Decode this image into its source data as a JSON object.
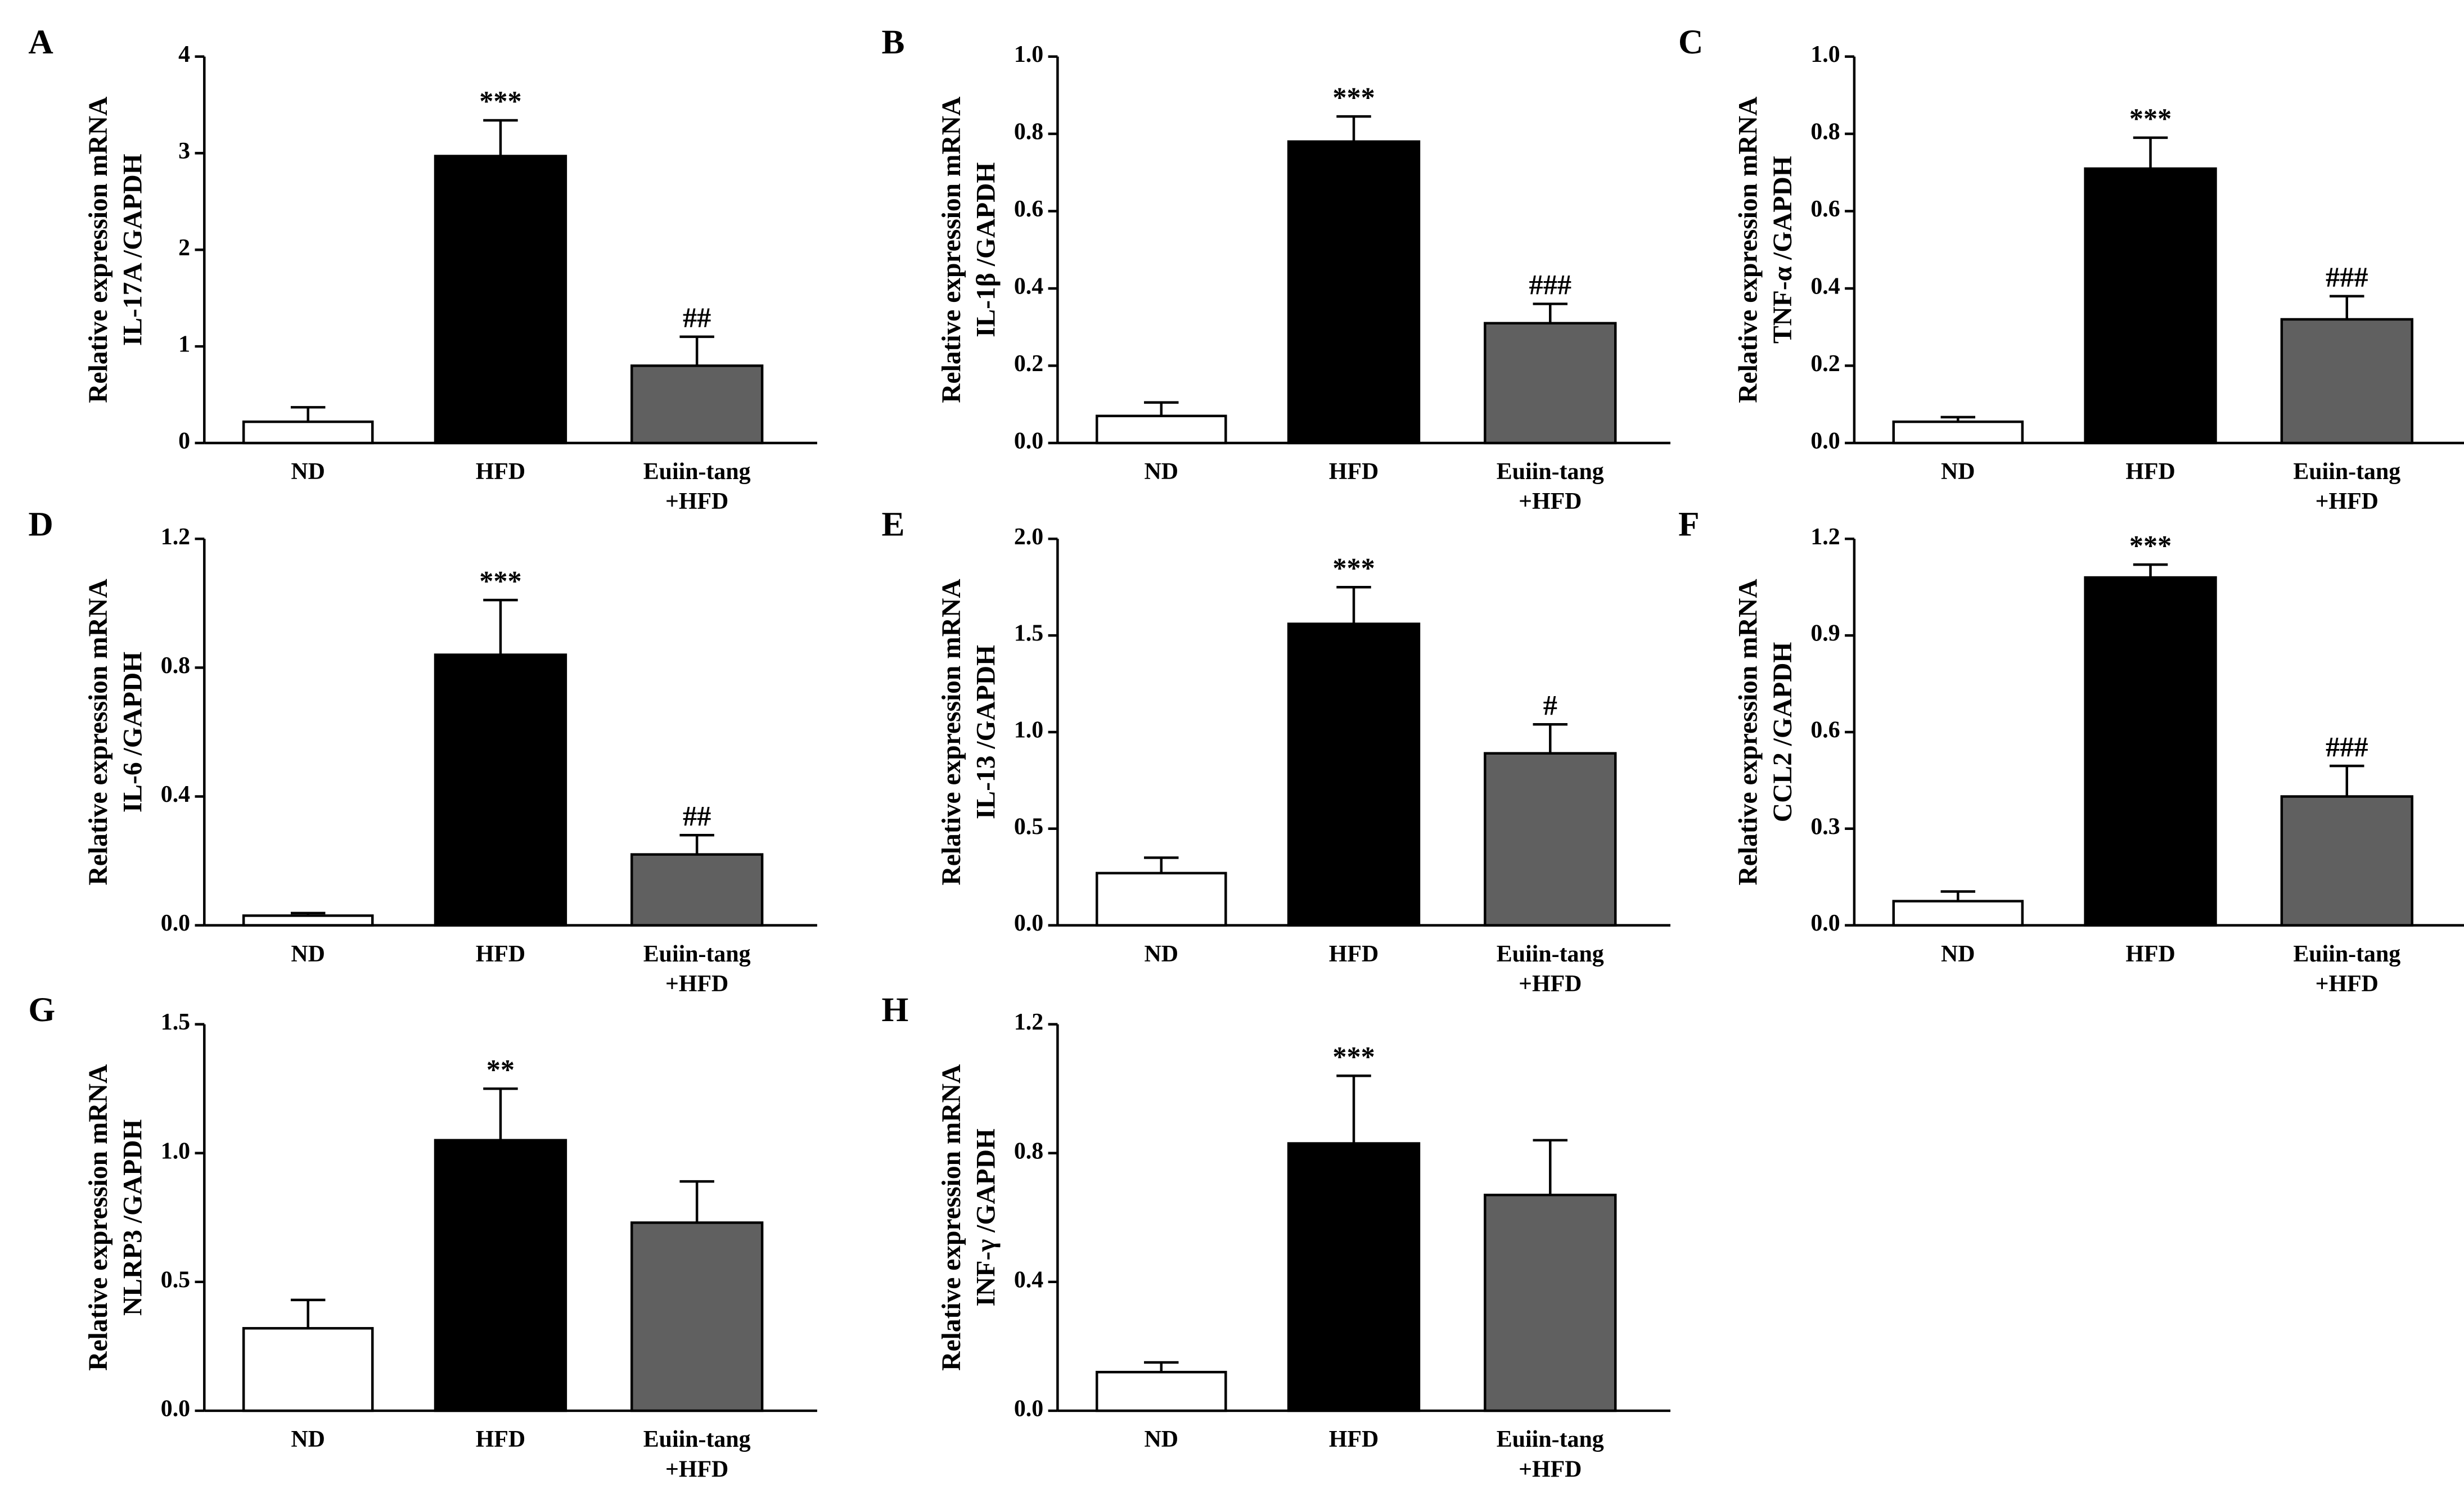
{
  "chart_data": [
    {
      "type": "bar",
      "panel": "A",
      "ylabel": [
        "Relative expression mRNA",
        "IL-17A /GAPDH"
      ],
      "categories": [
        [
          "ND"
        ],
        [
          "HFD"
        ],
        [
          "Euiin-tang",
          "+HFD"
        ]
      ],
      "colors": [
        "#ffffff",
        "#000000",
        "#606060"
      ],
      "values": [
        0.22,
        2.97,
        0.8
      ],
      "errors": [
        0.15,
        0.37,
        0.3
      ],
      "annotations": [
        null,
        "***",
        "##"
      ],
      "ylim": [
        0,
        4
      ],
      "yticks": [
        0,
        1,
        2,
        3,
        4
      ]
    },
    {
      "type": "bar",
      "panel": "B",
      "ylabel": [
        "Relative expression mRNA",
        "IL-1β /GAPDH"
      ],
      "categories": [
        [
          "ND"
        ],
        [
          "HFD"
        ],
        [
          "Euiin-tang",
          "+HFD"
        ]
      ],
      "colors": [
        "#ffffff",
        "#000000",
        "#606060"
      ],
      "values": [
        0.07,
        0.78,
        0.31
      ],
      "errors": [
        0.035,
        0.065,
        0.05
      ],
      "annotations": [
        null,
        "***",
        "###"
      ],
      "ylim": [
        0,
        1
      ],
      "yticks": [
        {
          "value": 0,
          "label": "0.0"
        },
        0.2,
        0.4,
        0.6,
        0.8,
        {
          "value": 1,
          "label": "1.0"
        }
      ]
    },
    {
      "type": "bar",
      "panel": "C",
      "ylabel": [
        "Relative expression mRNA",
        "TNF-α /GAPDH"
      ],
      "categories": [
        [
          "ND"
        ],
        [
          "HFD"
        ],
        [
          "Euiin-tang",
          "+HFD"
        ]
      ],
      "colors": [
        "#ffffff",
        "#000000",
        "#606060"
      ],
      "values": [
        0.055,
        0.71,
        0.32
      ],
      "errors": [
        0.012,
        0.08,
        0.06
      ],
      "annotations": [
        null,
        "***",
        "###"
      ],
      "ylim": [
        0,
        1
      ],
      "yticks": [
        {
          "value": 0,
          "label": "0.0"
        },
        0.2,
        0.4,
        0.6,
        0.8,
        {
          "value": 1,
          "label": "1.0"
        }
      ]
    },
    {
      "type": "bar",
      "panel": "D",
      "ylabel": [
        "Relative expression mRNA",
        "IL-6 /GAPDH"
      ],
      "categories": [
        [
          "ND"
        ],
        [
          "HFD"
        ],
        [
          "Euiin-tang",
          "+HFD"
        ]
      ],
      "colors": [
        "#ffffff",
        "#000000",
        "#606060"
      ],
      "values": [
        0.03,
        0.84,
        0.22
      ],
      "errors": [
        0.008,
        0.17,
        0.06
      ],
      "annotations": [
        null,
        "***",
        "##"
      ],
      "ylim": [
        0,
        1.2
      ],
      "yticks": [
        {
          "value": 0,
          "label": "0.0"
        },
        0.4,
        0.8,
        1.2
      ]
    },
    {
      "type": "bar",
      "panel": "E",
      "ylabel": [
        "Relative expression mRNA",
        "IL-13 /GAPDH"
      ],
      "categories": [
        [
          "ND"
        ],
        [
          "HFD"
        ],
        [
          "Euiin-tang",
          "+HFD"
        ]
      ],
      "colors": [
        "#ffffff",
        "#000000",
        "#606060"
      ],
      "values": [
        0.27,
        1.56,
        0.89
      ],
      "errors": [
        0.08,
        0.19,
        0.15
      ],
      "annotations": [
        null,
        "***",
        "#"
      ],
      "ylim": [
        0,
        2
      ],
      "yticks": [
        {
          "value": 0,
          "label": "0.0"
        },
        0.5,
        {
          "value": 1,
          "label": "1.0"
        },
        1.5,
        {
          "value": 2,
          "label": "2.0"
        }
      ]
    },
    {
      "type": "bar",
      "panel": "F",
      "ylabel": [
        "Relative expression mRNA",
        "CCL2 /GAPDH"
      ],
      "categories": [
        [
          "ND"
        ],
        [
          "HFD"
        ],
        [
          "Euiin-tang",
          "+HFD"
        ]
      ],
      "colors": [
        "#ffffff",
        "#000000",
        "#606060"
      ],
      "values": [
        0.075,
        1.08,
        0.4
      ],
      "errors": [
        0.03,
        0.04,
        0.095
      ],
      "annotations": [
        null,
        "***",
        "###"
      ],
      "ylim": [
        0,
        1.2
      ],
      "yticks": [
        {
          "value": 0,
          "label": "0.0"
        },
        0.3,
        0.6,
        0.9,
        1.2
      ]
    },
    {
      "type": "bar",
      "panel": "G",
      "ylabel": [
        "Relative expression mRNA",
        "NLRP3 /GAPDH"
      ],
      "categories": [
        [
          "ND"
        ],
        [
          "HFD"
        ],
        [
          "Euiin-tang",
          "+HFD"
        ]
      ],
      "colors": [
        "#ffffff",
        "#000000",
        "#606060"
      ],
      "values": [
        0.32,
        1.05,
        0.73
      ],
      "errors": [
        0.11,
        0.2,
        0.16
      ],
      "annotations": [
        null,
        "**",
        null
      ],
      "ylim": [
        0,
        1.5
      ],
      "yticks": [
        {
          "value": 0,
          "label": "0.0"
        },
        0.5,
        {
          "value": 1,
          "label": "1.0"
        },
        1.5
      ]
    },
    {
      "type": "bar",
      "panel": "H",
      "ylabel": [
        "Relative expression mRNA",
        "INF-γ /GAPDH"
      ],
      "categories": [
        [
          "ND"
        ],
        [
          "HFD"
        ],
        [
          "Euiin-tang",
          "+HFD"
        ]
      ],
      "colors": [
        "#ffffff",
        "#000000",
        "#606060"
      ],
      "values": [
        0.12,
        0.83,
        0.67
      ],
      "errors": [
        0.03,
        0.21,
        0.17
      ],
      "annotations": [
        null,
        "***",
        null
      ],
      "ylim": [
        0,
        1.2
      ],
      "yticks": [
        {
          "value": 0,
          "label": "0.0"
        },
        0.4,
        0.8,
        1.2
      ]
    }
  ]
}
